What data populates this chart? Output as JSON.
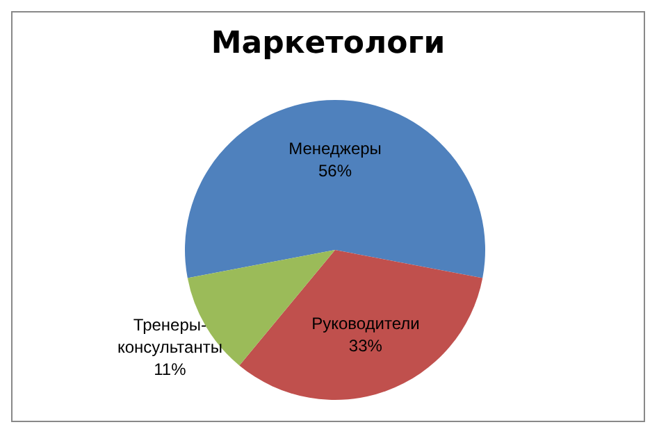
{
  "chart_data": {
    "type": "pie",
    "title": "Маркетологи",
    "categories": [
      "Менеджеры",
      "Руководители",
      "Тренеры-консультанты"
    ],
    "values": [
      56,
      33,
      11
    ],
    "value_labels": [
      "56%",
      "33%",
      "11%"
    ],
    "colors": [
      "#4f81bd",
      "#c0504d",
      "#9bbb59"
    ],
    "legend": false
  }
}
